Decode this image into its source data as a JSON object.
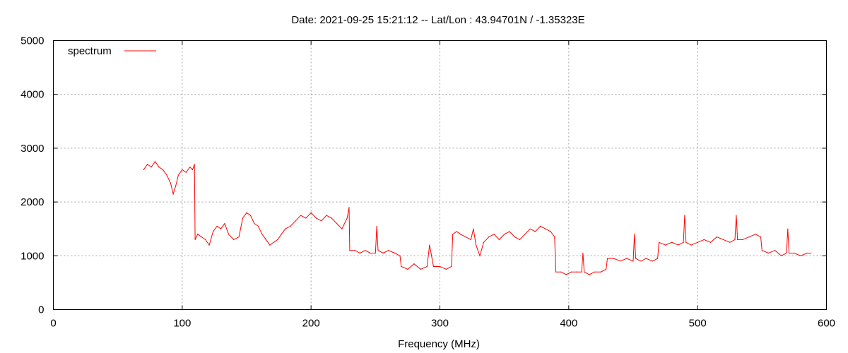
{
  "chart_data": {
    "type": "line",
    "title": "Date: 2021-09-25 15:21:12  --  Lat/Lon : 43.94701N / -1.35323E",
    "xlabel": "Frequency (MHz)",
    "ylabel": "",
    "xlim": [
      0,
      600
    ],
    "ylim": [
      0,
      5000
    ],
    "x_ticks": [
      "0",
      "100",
      "200",
      "300",
      "400",
      "500",
      "600"
    ],
    "y_ticks": [
      "0",
      "1000",
      "2000",
      "3000",
      "4000",
      "5000"
    ],
    "grid": true,
    "legend": "top-left",
    "series": [
      {
        "name": "spectrum",
        "color": "#ff0000",
        "x": [
          70,
          73,
          76,
          79,
          82,
          85,
          88,
          91,
          93,
          95,
          97,
          100,
          103,
          106,
          108,
          109.5,
          110,
          112,
          115,
          118,
          121,
          124,
          127,
          130,
          133,
          136,
          140,
          144,
          147,
          150,
          153,
          156,
          159,
          162,
          165,
          168,
          171,
          174,
          177,
          180,
          184,
          188,
          192,
          196,
          200,
          204,
          208,
          212,
          216,
          220,
          224,
          228,
          229.5,
          230,
          234,
          238,
          242,
          246,
          250,
          251,
          252,
          256,
          260,
          265,
          269,
          270,
          275,
          280,
          285,
          290,
          292,
          295,
          300,
          305,
          309,
          310,
          313,
          316,
          320,
          324,
          326,
          328,
          331,
          334,
          338,
          342,
          346,
          350,
          354,
          358,
          362,
          366,
          370,
          374,
          378,
          382,
          386,
          389,
          390,
          394,
          398,
          402,
          406,
          410,
          411,
          412,
          416,
          420,
          425,
          429,
          430,
          435,
          440,
          445,
          450,
          451,
          452,
          456,
          460,
          465,
          469,
          470,
          475,
          480,
          485,
          489,
          490,
          491,
          495,
          500,
          505,
          510,
          515,
          520,
          525,
          529,
          530,
          531,
          535,
          540,
          545,
          549,
          550,
          555,
          560,
          565,
          569,
          570,
          571,
          575,
          580,
          585,
          588
        ],
        "y": [
          2600,
          2700,
          2650,
          2750,
          2650,
          2600,
          2500,
          2350,
          2150,
          2300,
          2500,
          2600,
          2550,
          2650,
          2600,
          2700,
          1300,
          1400,
          1350,
          1300,
          1200,
          1450,
          1550,
          1500,
          1600,
          1400,
          1300,
          1350,
          1700,
          1800,
          1750,
          1600,
          1550,
          1400,
          1300,
          1200,
          1250,
          1300,
          1400,
          1500,
          1550,
          1650,
          1750,
          1700,
          1800,
          1700,
          1650,
          1750,
          1700,
          1600,
          1500,
          1700,
          1900,
          1100,
          1100,
          1050,
          1100,
          1050,
          1050,
          1550,
          1100,
          1050,
          1100,
          1050,
          1000,
          800,
          750,
          850,
          750,
          800,
          1200,
          800,
          800,
          750,
          800,
          1400,
          1450,
          1400,
          1350,
          1300,
          1500,
          1200,
          1000,
          1250,
          1350,
          1400,
          1300,
          1400,
          1450,
          1350,
          1300,
          1400,
          1500,
          1450,
          1550,
          1500,
          1450,
          1350,
          700,
          700,
          650,
          700,
          700,
          700,
          1050,
          700,
          650,
          700,
          700,
          750,
          950,
          950,
          900,
          950,
          900,
          1400,
          950,
          900,
          950,
          900,
          950,
          1250,
          1200,
          1250,
          1200,
          1250,
          1750,
          1250,
          1200,
          1250,
          1300,
          1250,
          1350,
          1300,
          1250,
          1300,
          1750,
          1300,
          1300,
          1350,
          1400,
          1350,
          1100,
          1050,
          1100,
          1000,
          1050,
          1500,
          1050,
          1050,
          1000,
          1050,
          1050
        ]
      }
    ]
  }
}
